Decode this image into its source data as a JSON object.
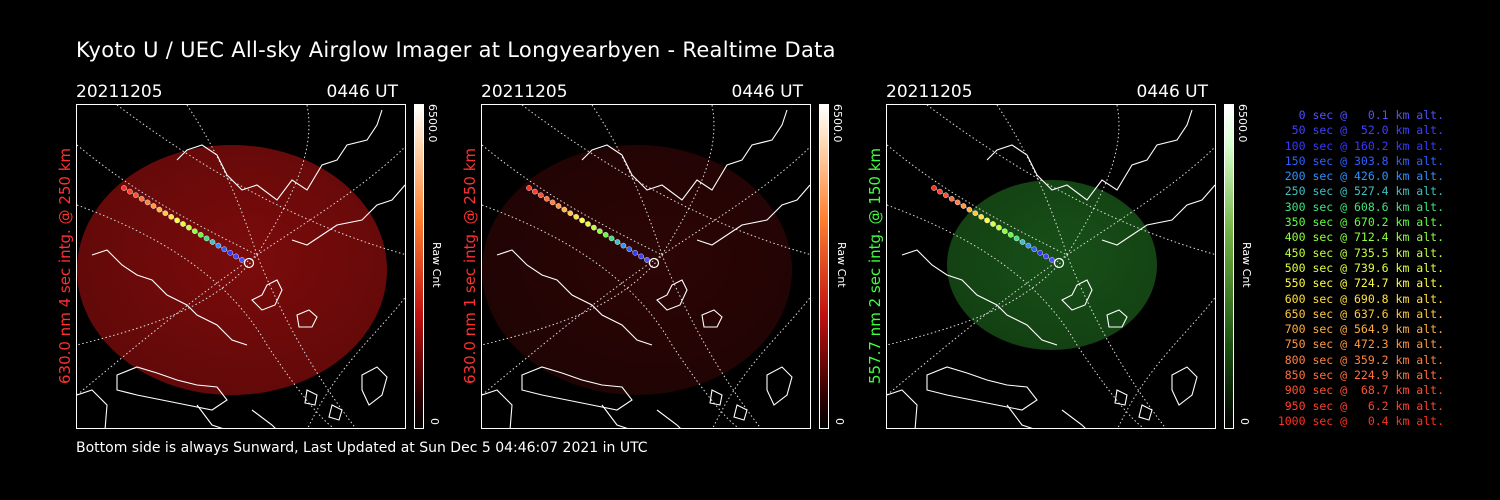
{
  "title": "Kyoto U / UEC All-sky Airglow Imager at Longyearbyen - Realtime Data",
  "footer": "Bottom side is always Sunward, Last Updated at Sun Dec  5 04:46:07 2021 in UTC",
  "panels": [
    {
      "date": "20211205",
      "time": "0446 UT",
      "ylabel": "630.0 nm 4 sec intg. @ 250 km",
      "label_color": "#ff3030",
      "cbar_max": "6500.0",
      "cbar_min": "0",
      "cbar_label": "Raw Cnt",
      "glow_color": "#b01010",
      "glow_opacity": 0.55
    },
    {
      "date": "20211205",
      "time": "0446 UT",
      "ylabel": "630.0 nm 1 sec intg. @ 250 km",
      "label_color": "#ff3030",
      "cbar_max": "6500.0",
      "cbar_min": "0",
      "cbar_label": "Raw Cnt",
      "glow_color": "#5a0a0a",
      "glow_opacity": 0.35
    },
    {
      "date": "20211205",
      "time": "0446 UT",
      "ylabel": "557.7 nm 2 sec intg. @ 150 km",
      "label_color": "#40ff40",
      "cbar_max": "6500.0",
      "cbar_min": "0",
      "cbar_label": "Raw Cnt",
      "glow_color": "#1f6a1f",
      "glow_opacity": 0.6
    }
  ],
  "legend": [
    {
      "text": "0 sec @   0.1 km alt.",
      "color": "#5050ff"
    },
    {
      "text": "50 sec @  52.0 km alt.",
      "color": "#4040ff"
    },
    {
      "text": "100 sec @ 160.2 km alt.",
      "color": "#3838ff"
    },
    {
      "text": "150 sec @ 303.8 km alt.",
      "color": "#3060ff"
    },
    {
      "text": "200 sec @ 426.0 km alt.",
      "color": "#3090ff"
    },
    {
      "text": "250 sec @ 527.4 km alt.",
      "color": "#40c0c0"
    },
    {
      "text": "300 sec @ 608.6 km alt.",
      "color": "#40e080"
    },
    {
      "text": "350 sec @ 670.2 km alt.",
      "color": "#60ff40"
    },
    {
      "text": "400 sec @ 712.4 km alt.",
      "color": "#90ff40"
    },
    {
      "text": "450 sec @ 735.5 km alt.",
      "color": "#c0ff40"
    },
    {
      "text": "500 sec @ 739.6 km alt.",
      "color": "#e0ff40"
    },
    {
      "text": "550 sec @ 724.7 km alt.",
      "color": "#ffff40"
    },
    {
      "text": "600 sec @ 690.8 km alt.",
      "color": "#ffe040"
    },
    {
      "text": "650 sec @ 637.6 km alt.",
      "color": "#ffc840"
    },
    {
      "text": "700 sec @ 564.9 km alt.",
      "color": "#ffb040"
    },
    {
      "text": "750 sec @ 472.3 km alt.",
      "color": "#ff9840"
    },
    {
      "text": "800 sec @ 359.2 km alt.",
      "color": "#ff8040"
    },
    {
      "text": "850 sec @ 224.9 km alt.",
      "color": "#ff7040"
    },
    {
      "text": "900 sec @  68.7 km alt.",
      "color": "#ff5030"
    },
    {
      "text": "950 sec @   6.2 km alt.",
      "color": "#ff4030"
    },
    {
      "text": "1000 sec @   0.4 km alt.",
      "color": "#ff3020"
    }
  ]
}
